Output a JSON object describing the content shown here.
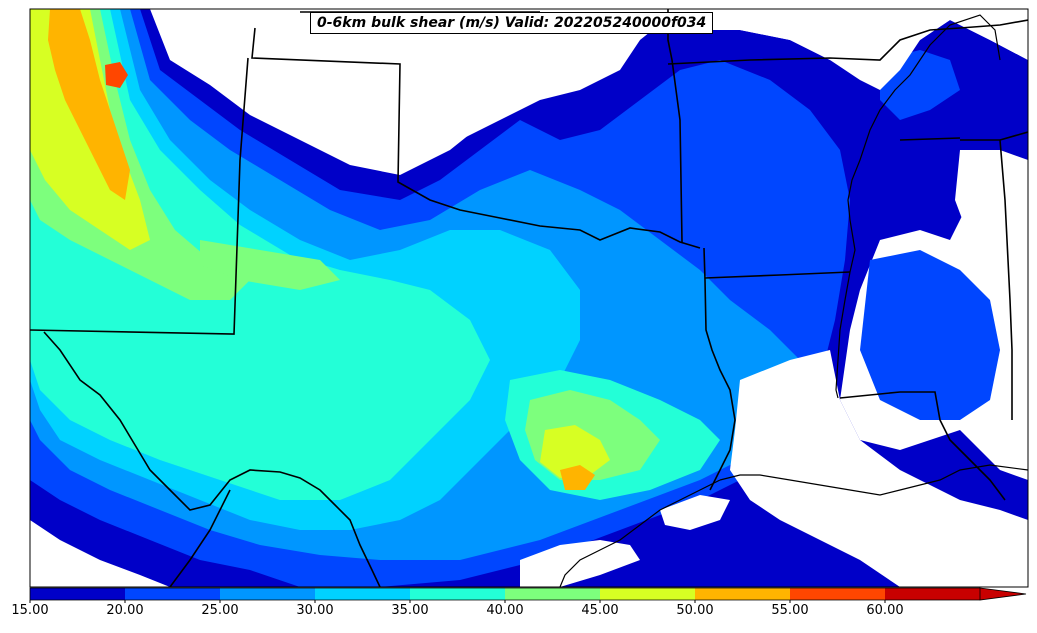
{
  "title": "0-6km bulk shear (m/s) Valid: 202205240000f034",
  "colorbar": {
    "ticks": [
      "15.00",
      "20.00",
      "25.00",
      "30.00",
      "35.00",
      "40.00",
      "45.00",
      "50.00",
      "55.00",
      "60.00"
    ],
    "colors": [
      "#0000c8",
      "#0046ff",
      "#0096ff",
      "#00d2ff",
      "#23ffd7",
      "#7dff7d",
      "#d7ff23",
      "#ffb400",
      "#ff4600",
      "#c80000"
    ]
  }
}
